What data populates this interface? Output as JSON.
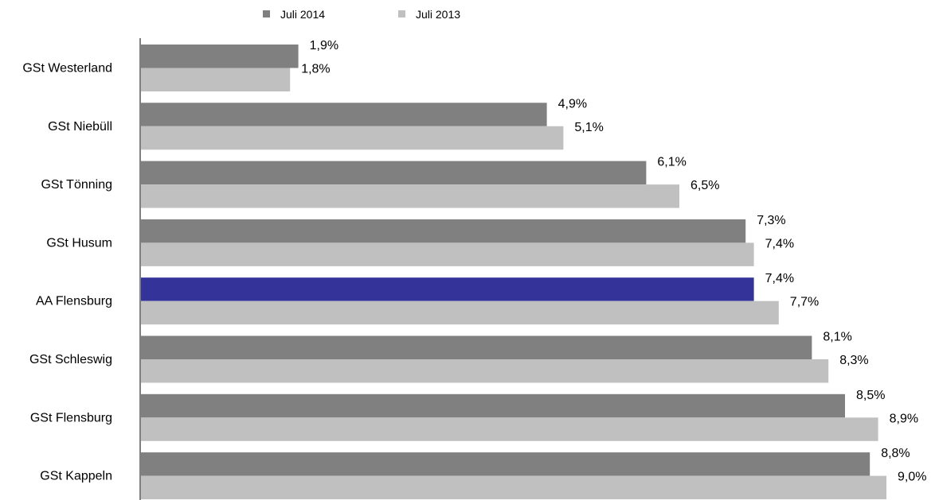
{
  "chart_data": {
    "type": "bar",
    "orientation": "horizontal",
    "categories": [
      "GSt Westerland",
      "GSt Niebüll",
      "GSt Tönning",
      "GSt Husum",
      "AA Flensburg",
      "GSt Schleswig",
      "GSt Flensburg",
      "GSt Kappeln"
    ],
    "series": [
      {
        "name": "Juli 2014",
        "color": "#808080",
        "values": [
          1.9,
          4.9,
          6.1,
          7.3,
          7.4,
          8.1,
          8.5,
          8.8
        ],
        "labels": [
          "1,9%",
          "4,9%",
          "6,1%",
          "7,3%",
          "7,4%",
          "8,1%",
          "8,5%",
          "8,8%"
        ]
      },
      {
        "name": "Juli 2013",
        "color": "#c0c0c0",
        "values": [
          1.8,
          5.1,
          6.5,
          7.4,
          7.7,
          8.3,
          8.9,
          9.0
        ],
        "labels": [
          "1,8%",
          "5,1%",
          "6,5%",
          "7,4%",
          "7,7%",
          "8,3%",
          "8,9%",
          "9,0%"
        ]
      }
    ],
    "highlight": {
      "category": "AA Flensburg",
      "series": "Juli 2014",
      "color": "#333399"
    },
    "xlim": [
      0,
      9.6
    ],
    "grid": false,
    "legend_position": "top"
  }
}
